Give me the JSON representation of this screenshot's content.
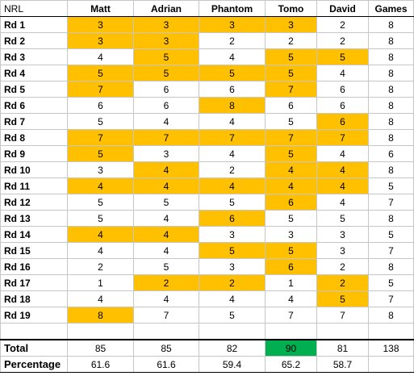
{
  "sheet": {
    "corner_label": "NRL",
    "players": [
      "Matt",
      "Adrian",
      "Phantom",
      "Tomo",
      "David"
    ],
    "games_header": "Games",
    "highlight_color": "#ffc000",
    "best_total_color": "#00b050",
    "rows": [
      {
        "label": "Rd 1",
        "scores": [
          3,
          3,
          3,
          3,
          2
        ],
        "highlight": [
          true,
          true,
          true,
          true,
          false
        ],
        "games": 8
      },
      {
        "label": "Rd 2",
        "scores": [
          3,
          3,
          2,
          2,
          2
        ],
        "highlight": [
          true,
          true,
          false,
          false,
          false
        ],
        "games": 8
      },
      {
        "label": "Rd 3",
        "scores": [
          4,
          5,
          4,
          5,
          5
        ],
        "highlight": [
          false,
          true,
          false,
          true,
          true
        ],
        "games": 8
      },
      {
        "label": "Rd 4",
        "scores": [
          5,
          5,
          5,
          5,
          4
        ],
        "highlight": [
          true,
          true,
          true,
          true,
          false
        ],
        "games": 8
      },
      {
        "label": "Rd 5",
        "scores": [
          7,
          6,
          6,
          7,
          6
        ],
        "highlight": [
          true,
          false,
          false,
          true,
          false
        ],
        "games": 8
      },
      {
        "label": "Rd 6",
        "scores": [
          6,
          6,
          8,
          6,
          6
        ],
        "highlight": [
          false,
          false,
          true,
          false,
          false
        ],
        "games": 8
      },
      {
        "label": "Rd 7",
        "scores": [
          5,
          4,
          4,
          5,
          6
        ],
        "highlight": [
          false,
          false,
          false,
          false,
          true
        ],
        "games": 8
      },
      {
        "label": "Rd 8",
        "scores": [
          7,
          7,
          7,
          7,
          7
        ],
        "highlight": [
          true,
          true,
          true,
          true,
          true
        ],
        "games": 8
      },
      {
        "label": "Rd 9",
        "scores": [
          5,
          3,
          4,
          5,
          4
        ],
        "highlight": [
          true,
          false,
          false,
          true,
          false
        ],
        "games": 6
      },
      {
        "label": "Rd 10",
        "scores": [
          3,
          4,
          2,
          4,
          4
        ],
        "highlight": [
          false,
          true,
          false,
          true,
          true
        ],
        "games": 8
      },
      {
        "label": "Rd 11",
        "scores": [
          4,
          4,
          4,
          4,
          4
        ],
        "highlight": [
          true,
          true,
          true,
          true,
          true
        ],
        "games": 5
      },
      {
        "label": "Rd 12",
        "scores": [
          5,
          5,
          5,
          6,
          4
        ],
        "highlight": [
          false,
          false,
          false,
          true,
          false
        ],
        "games": 7
      },
      {
        "label": "Rd 13",
        "scores": [
          5,
          4,
          6,
          5,
          5
        ],
        "highlight": [
          false,
          false,
          true,
          false,
          false
        ],
        "games": 8
      },
      {
        "label": "Rd 14",
        "scores": [
          4,
          4,
          3,
          3,
          3
        ],
        "highlight": [
          true,
          true,
          false,
          false,
          false
        ],
        "games": 5
      },
      {
        "label": "Rd 15",
        "scores": [
          4,
          4,
          5,
          5,
          3
        ],
        "highlight": [
          false,
          false,
          true,
          true,
          false
        ],
        "games": 7
      },
      {
        "label": "Rd 16",
        "scores": [
          2,
          5,
          3,
          6,
          2
        ],
        "highlight": [
          false,
          false,
          false,
          true,
          false
        ],
        "games": 8
      },
      {
        "label": "Rd 17",
        "scores": [
          1,
          2,
          2,
          1,
          2
        ],
        "highlight": [
          false,
          true,
          true,
          false,
          true
        ],
        "games": 5
      },
      {
        "label": "Rd 18",
        "scores": [
          4,
          4,
          4,
          4,
          5
        ],
        "highlight": [
          false,
          false,
          false,
          false,
          true
        ],
        "games": 7
      },
      {
        "label": "Rd 19",
        "scores": [
          8,
          7,
          5,
          7,
          7
        ],
        "highlight": [
          true,
          false,
          false,
          false,
          false
        ],
        "games": 8
      }
    ],
    "total": {
      "label": "Total",
      "values": [
        85,
        85,
        82,
        90,
        81
      ],
      "best_index": 3,
      "games": 138
    },
    "percentage": {
      "label": "Percentage",
      "values": [
        "61.6",
        "61.6",
        "59.4",
        "65.2",
        "58.7"
      ]
    }
  }
}
